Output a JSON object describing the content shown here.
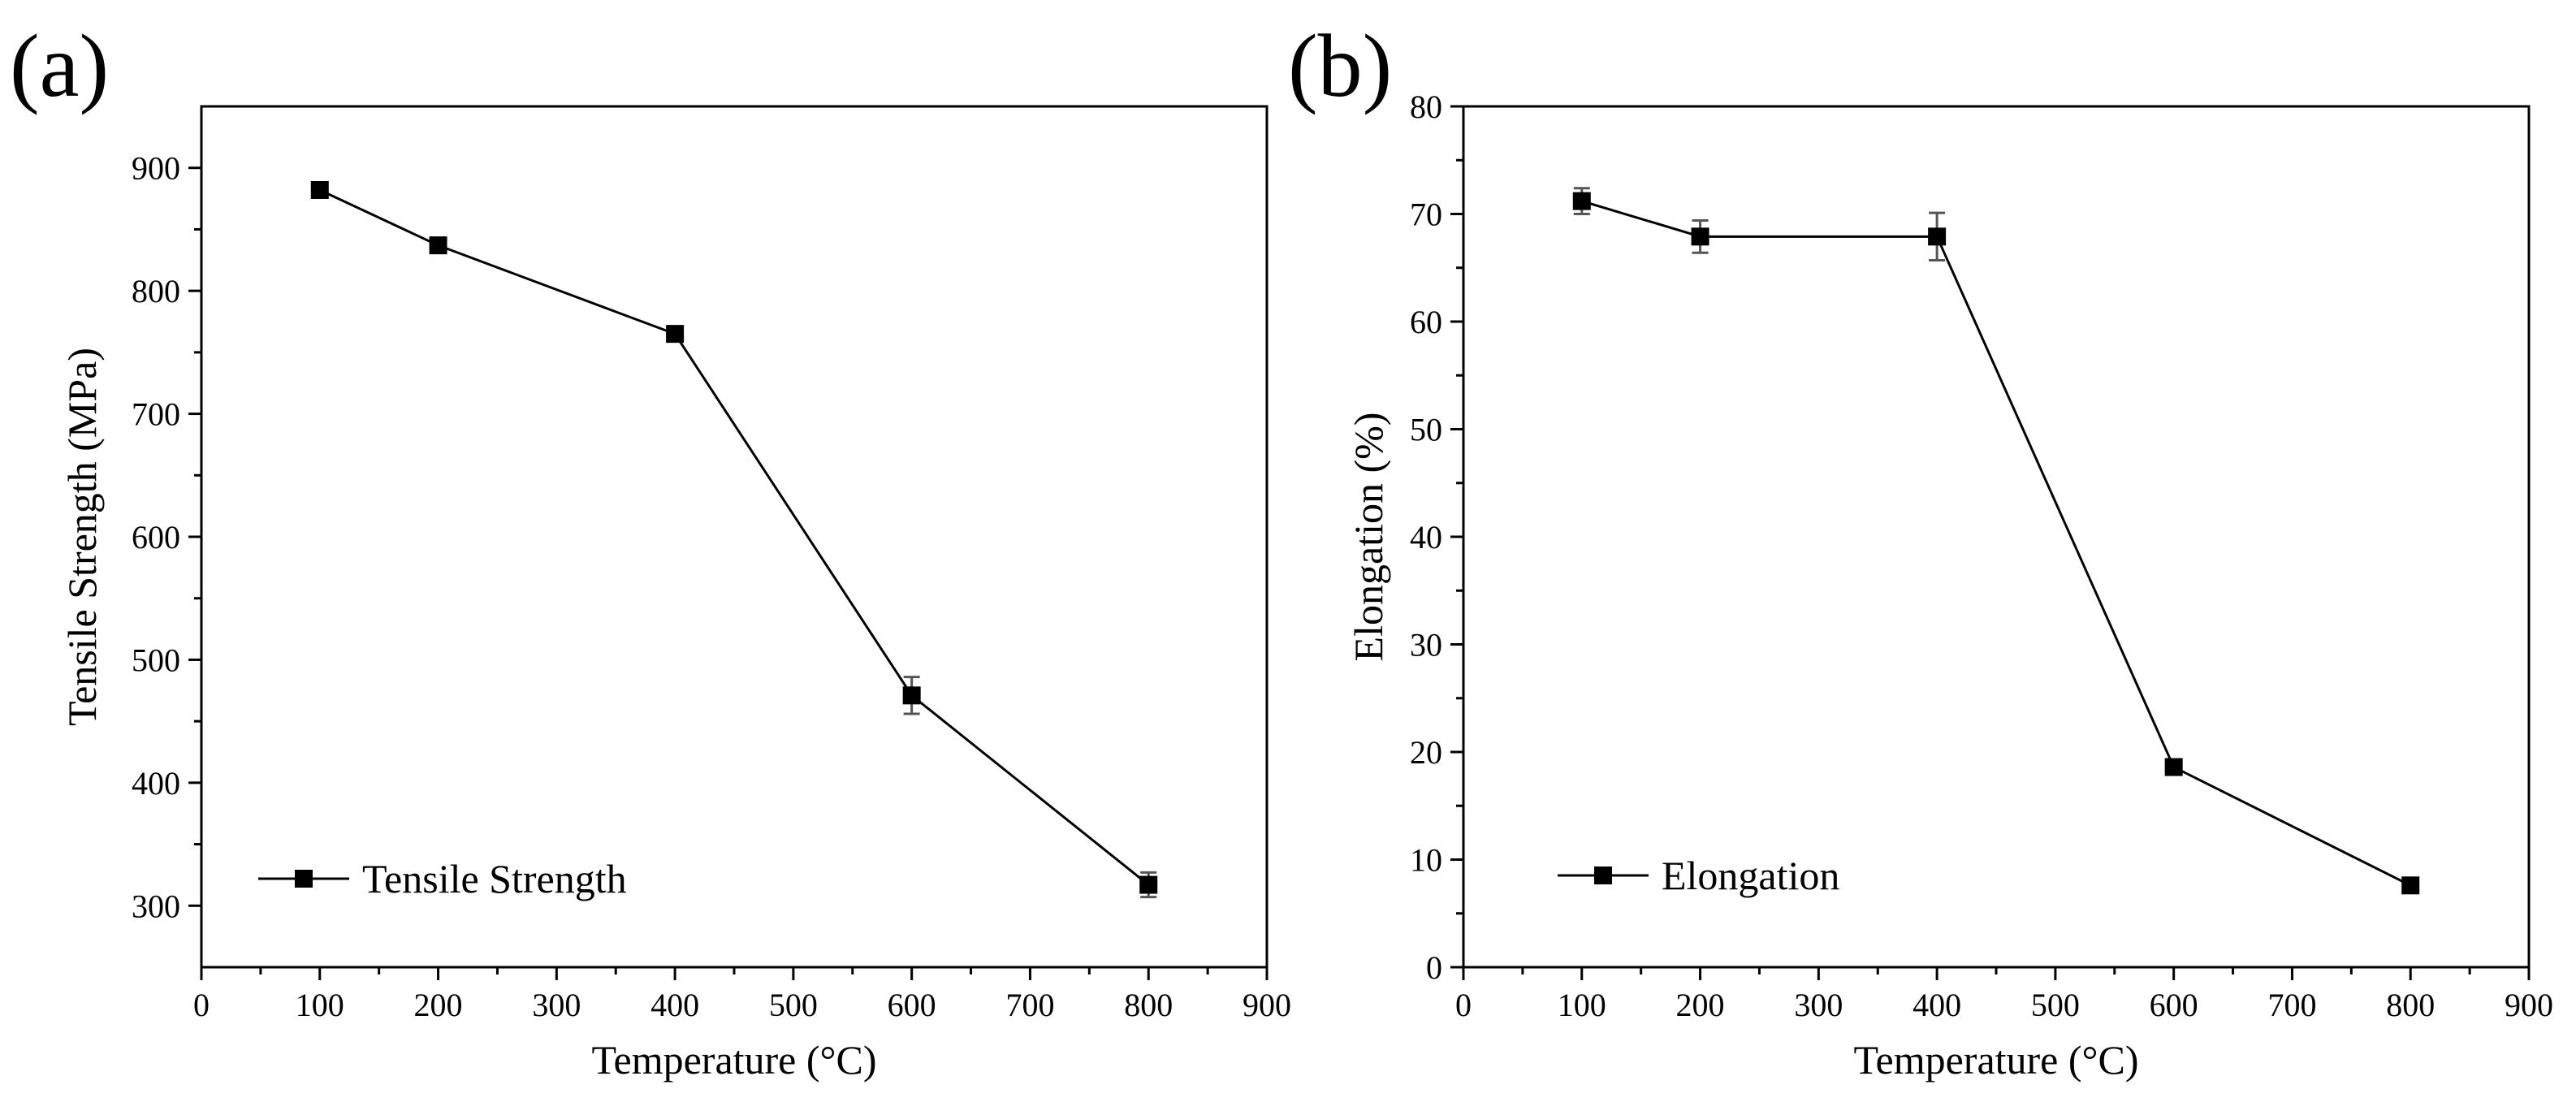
{
  "chart_data": [
    {
      "type": "line",
      "panel_label": "(a)",
      "title": "",
      "xlabel": "Temperature (°C)",
      "ylabel": "Tensile Strength (MPa)",
      "xlim": [
        0,
        900
      ],
      "ylim": [
        250,
        950
      ],
      "xticks": [
        0,
        100,
        200,
        300,
        400,
        500,
        600,
        700,
        800,
        900
      ],
      "yticks": [
        300,
        400,
        500,
        600,
        700,
        800,
        900
      ],
      "x_minor_step": 50,
      "y_minor_step": 50,
      "grid": false,
      "legend_position": "bottom-left",
      "series": [
        {
          "name": "Tensile Strength",
          "marker": "square",
          "color": "#000000",
          "x": [
            100,
            200,
            400,
            600,
            800
          ],
          "y": [
            882,
            837,
            765,
            471,
            317
          ],
          "error": [
            6,
            6,
            6,
            15,
            10
          ]
        }
      ]
    },
    {
      "type": "line",
      "panel_label": "(b)",
      "title": "",
      "xlabel": "Temperature (°C)",
      "ylabel": "Elongation (%)",
      "xlim": [
        0,
        900
      ],
      "ylim": [
        0,
        80
      ],
      "xticks": [
        0,
        100,
        200,
        300,
        400,
        500,
        600,
        700,
        800,
        900
      ],
      "yticks": [
        0,
        10,
        20,
        30,
        40,
        50,
        60,
        70,
        80
      ],
      "x_minor_step": 50,
      "y_minor_step": 5,
      "grid": false,
      "legend_position": "bottom-left",
      "series": [
        {
          "name": "Elongation",
          "marker": "square",
          "color": "#000000",
          "x": [
            100,
            200,
            400,
            600,
            800
          ],
          "y": [
            71.2,
            67.9,
            67.9,
            18.6,
            7.6
          ],
          "error": [
            1.2,
            1.5,
            2.2,
            0.6,
            0.5
          ]
        }
      ]
    }
  ]
}
